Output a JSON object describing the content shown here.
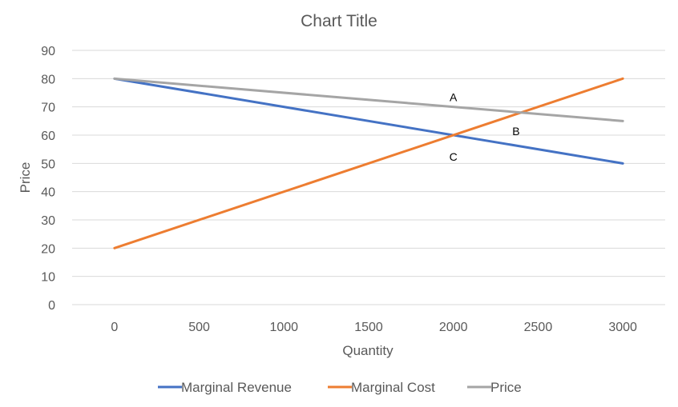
{
  "chart_data": {
    "type": "line",
    "title": "Chart Title",
    "xlabel": "Quantity",
    "ylabel": "Price",
    "x": [
      0,
      3000
    ],
    "xlim": [
      -250,
      3250
    ],
    "ylim": [
      0,
      90
    ],
    "xticks": [
      0,
      500,
      1000,
      1500,
      2000,
      2500,
      3000
    ],
    "yticks": [
      0,
      10,
      20,
      30,
      40,
      50,
      60,
      70,
      80,
      90
    ],
    "grid": "horizontal",
    "legend_position": "bottom",
    "series": [
      {
        "name": "Marginal Revenue",
        "color": "#4472C4",
        "points": [
          [
            0,
            80
          ],
          [
            3000,
            50
          ]
        ]
      },
      {
        "name": "Marginal Cost",
        "color": "#ED7D31",
        "points": [
          [
            0,
            20
          ],
          [
            3000,
            80
          ]
        ]
      },
      {
        "name": "Price",
        "color": "#A5A5A5",
        "points": [
          [
            0,
            80
          ],
          [
            3000,
            65
          ]
        ]
      }
    ],
    "annotations": [
      {
        "text": "A",
        "x": 2000,
        "y": 72
      },
      {
        "text": "B",
        "x": 2370,
        "y": 60
      },
      {
        "text": "C",
        "x": 2000,
        "y": 51
      }
    ]
  }
}
